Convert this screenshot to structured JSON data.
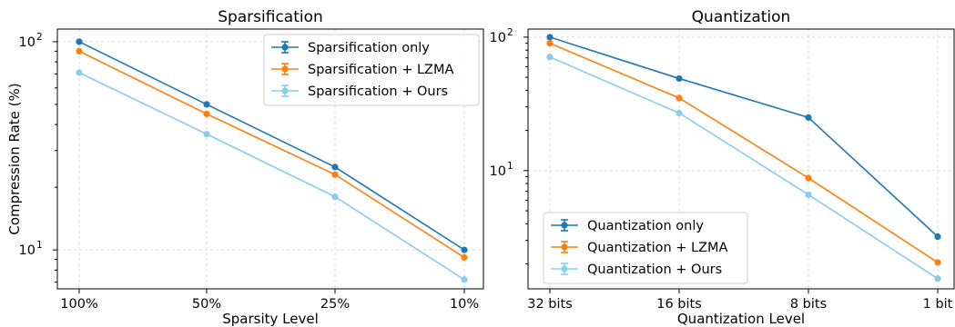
{
  "chart_data": [
    {
      "type": "line",
      "title": "Sparsification",
      "xlabel": "Sparsity Level",
      "ylabel": "Compression Rate (%)",
      "yscale": "log",
      "ylim": [
        6.5,
        115
      ],
      "categories": [
        "100%",
        "50%",
        "25%",
        "10%"
      ],
      "y_ticks": [
        {
          "value": 10,
          "label": "10",
          "sup": "1"
        },
        {
          "value": 100,
          "label": "10",
          "sup": "2"
        }
      ],
      "grid": true,
      "legend_position": "top-right",
      "series": [
        {
          "name": "Sparsification only",
          "color": "#1f77b4",
          "values": [
            100,
            50,
            25,
            10
          ]
        },
        {
          "name": "Sparsification + LZMA",
          "color": "#ff7f0e",
          "values": [
            90,
            45,
            23,
            9.2
          ]
        },
        {
          "name": "Sparsification + Ours",
          "color": "#87ceeb",
          "values": [
            71,
            36,
            18,
            7.2
          ]
        }
      ]
    },
    {
      "type": "line",
      "title": "Quantization",
      "xlabel": "Quantization Level",
      "ylabel": "",
      "yscale": "log",
      "ylim": [
        1.3,
        115
      ],
      "categories": [
        "32 bits",
        "16 bits",
        "8 bits",
        "1 bit"
      ],
      "y_ticks": [
        {
          "value": 10,
          "label": "10",
          "sup": "1"
        },
        {
          "value": 100,
          "label": "10",
          "sup": "2"
        }
      ],
      "grid": true,
      "legend_position": "bottom-left",
      "series": [
        {
          "name": "Quantization only",
          "color": "#1f77b4",
          "values": [
            100,
            49,
            25,
            3.2
          ]
        },
        {
          "name": "Quantization + LZMA",
          "color": "#ff7f0e",
          "values": [
            90,
            35,
            8.8,
            2.05
          ]
        },
        {
          "name": "Quantization + Ours",
          "color": "#87ceeb",
          "values": [
            71,
            27,
            6.6,
            1.55
          ]
        }
      ]
    }
  ]
}
